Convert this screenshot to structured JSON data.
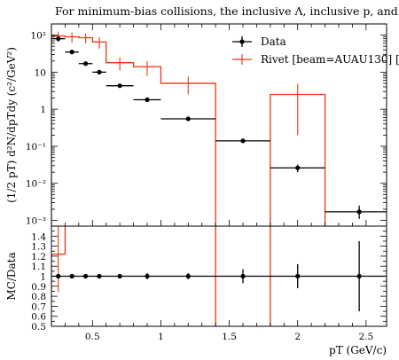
{
  "title": "For minimum-bias collisions, the inclusive Λ, inclusive p, and dire",
  "colors": {
    "data": "#000000",
    "mc": "#ee3311"
  },
  "chart_data": [
    {
      "type": "line",
      "panel": "main",
      "title": "For minimum-bias collisions, the inclusive Λ, inclusive p, and dire",
      "xlabel": "",
      "ylabel": "(1/2 pT) d²N/dpTdy (c²/GeV²)",
      "yscale": "log",
      "xlim": [
        0.2,
        2.65
      ],
      "ylim": [
        0.0007,
        200
      ],
      "y_ticks": [
        "10⁻³",
        "10⁻²",
        "10⁻¹",
        "1",
        "10",
        "10²"
      ],
      "legend_position": "top-right",
      "series": [
        {
          "name": "Data",
          "style": "points-with-errors",
          "color": "#000000",
          "x": [
            0.25,
            0.35,
            0.45,
            0.55,
            0.7,
            0.9,
            1.2,
            1.6,
            2.0,
            2.45
          ],
          "x_err": [
            0.05,
            0.05,
            0.05,
            0.05,
            0.1,
            0.1,
            0.2,
            0.2,
            0.2,
            0.25
          ],
          "y": [
            80,
            35,
            17,
            10,
            4.3,
            1.8,
            0.55,
            0.14,
            0.026,
            0.0017
          ],
          "y_err_low": [
            6,
            3,
            1.2,
            0.7,
            0.3,
            0.12,
            0.04,
            0.015,
            0.006,
            0.0006
          ],
          "y_err_high": [
            6,
            3,
            1.2,
            0.7,
            0.3,
            0.12,
            0.04,
            0.015,
            0.006,
            0.0008
          ]
        },
        {
          "name": "Rivet [beam=AUAU130] [",
          "style": "histogram",
          "color": "#ee3311",
          "bin_edges": [
            0.2,
            0.3,
            0.4,
            0.5,
            0.6,
            0.8,
            1.0,
            1.4,
            1.8,
            2.2
          ],
          "y": [
            95,
            90,
            85,
            65,
            18,
            14,
            5,
            1e-05,
            2.5
          ],
          "y_err": [
            30,
            28,
            25,
            22,
            7,
            6,
            2.5,
            0,
            2.3
          ]
        }
      ]
    },
    {
      "type": "line",
      "panel": "ratio",
      "xlabel": "pT (GeV/c)",
      "ylabel": "MC/Data",
      "xlim": [
        0.2,
        2.65
      ],
      "ylim": [
        0.5,
        1.5
      ],
      "x_ticks": [
        0.5,
        1.0,
        1.5,
        2.0,
        2.5
      ],
      "x_tick_labels": [
        "0.5",
        "1",
        "1.5",
        "2",
        "2.5"
      ],
      "y_ticks": [
        0.5,
        0.6,
        0.7,
        0.8,
        0.9,
        1.0,
        1.1,
        1.2,
        1.3,
        1.4
      ],
      "y_tick_labels": [
        "0.5",
        "0.6",
        "0.7",
        "0.8",
        "0.9",
        "1",
        "1.1",
        "1.2",
        "1.3",
        "1.4"
      ],
      "series": [
        {
          "name": "Data",
          "style": "points-with-errors",
          "color": "#000000",
          "x": [
            0.25,
            0.35,
            0.45,
            0.55,
            0.7,
            0.9,
            1.2,
            1.6,
            2.0,
            2.45
          ],
          "x_err": [
            0.05,
            0.05,
            0.05,
            0.05,
            0.1,
            0.1,
            0.2,
            0.2,
            0.2,
            0.25
          ],
          "y": [
            1,
            1,
            1,
            1,
            1,
            1,
            1,
            1,
            1,
            1
          ],
          "y_err": [
            0.02,
            0.02,
            0.02,
            0.02,
            0.02,
            0.03,
            0.03,
            0.07,
            0.12,
            0.35
          ]
        },
        {
          "name": "Rivet [beam=AUAU130] [",
          "style": "histogram",
          "color": "#ee3311",
          "bin_edges": [
            0.2,
            0.3,
            1.4,
            1.8,
            2.2
          ],
          "y": [
            1.22,
            2.0,
            0.3,
            2.0
          ],
          "y_err": [
            0.38,
            0,
            0,
            0
          ],
          "lower_edge_bin1": 0.85
        }
      ]
    }
  ]
}
